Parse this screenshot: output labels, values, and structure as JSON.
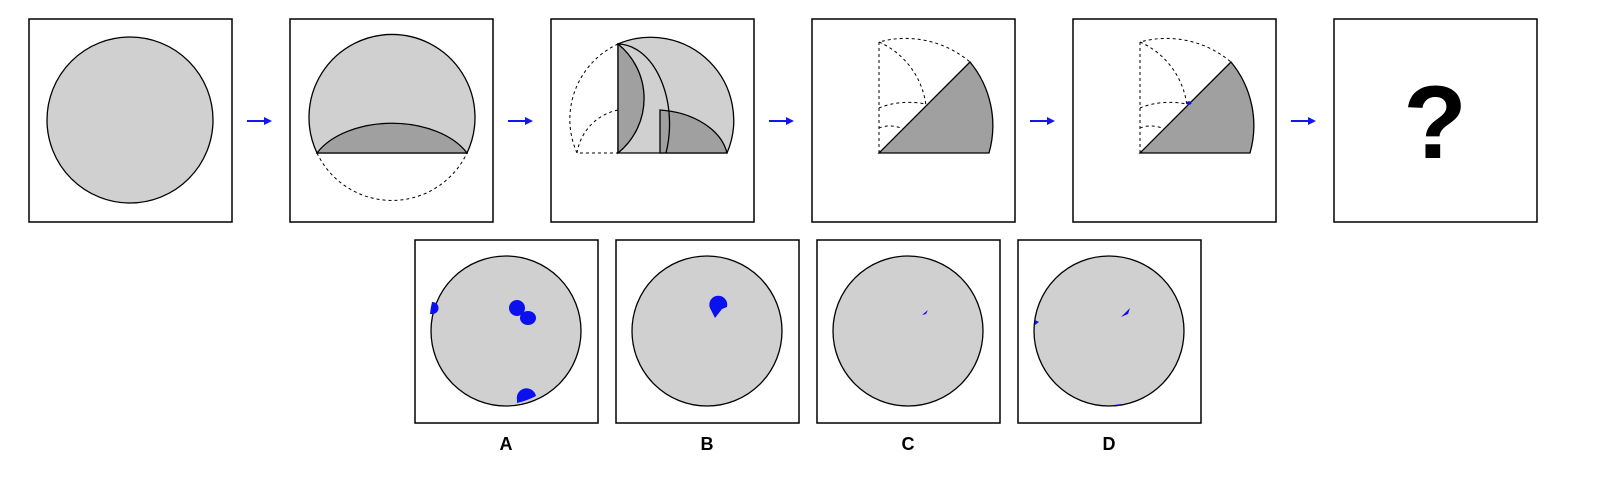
{
  "sequence": {
    "question_mark": "?"
  },
  "options": [
    {
      "label": "A"
    },
    {
      "label": "B"
    },
    {
      "label": "C"
    },
    {
      "label": "D"
    }
  ],
  "colors": {
    "paper": "#d0d0d0",
    "fold": "#a0a0a0",
    "arrow": "#1515f0",
    "hole": "#0a10ee",
    "outline": "#000000",
    "background": "#ffffff"
  }
}
